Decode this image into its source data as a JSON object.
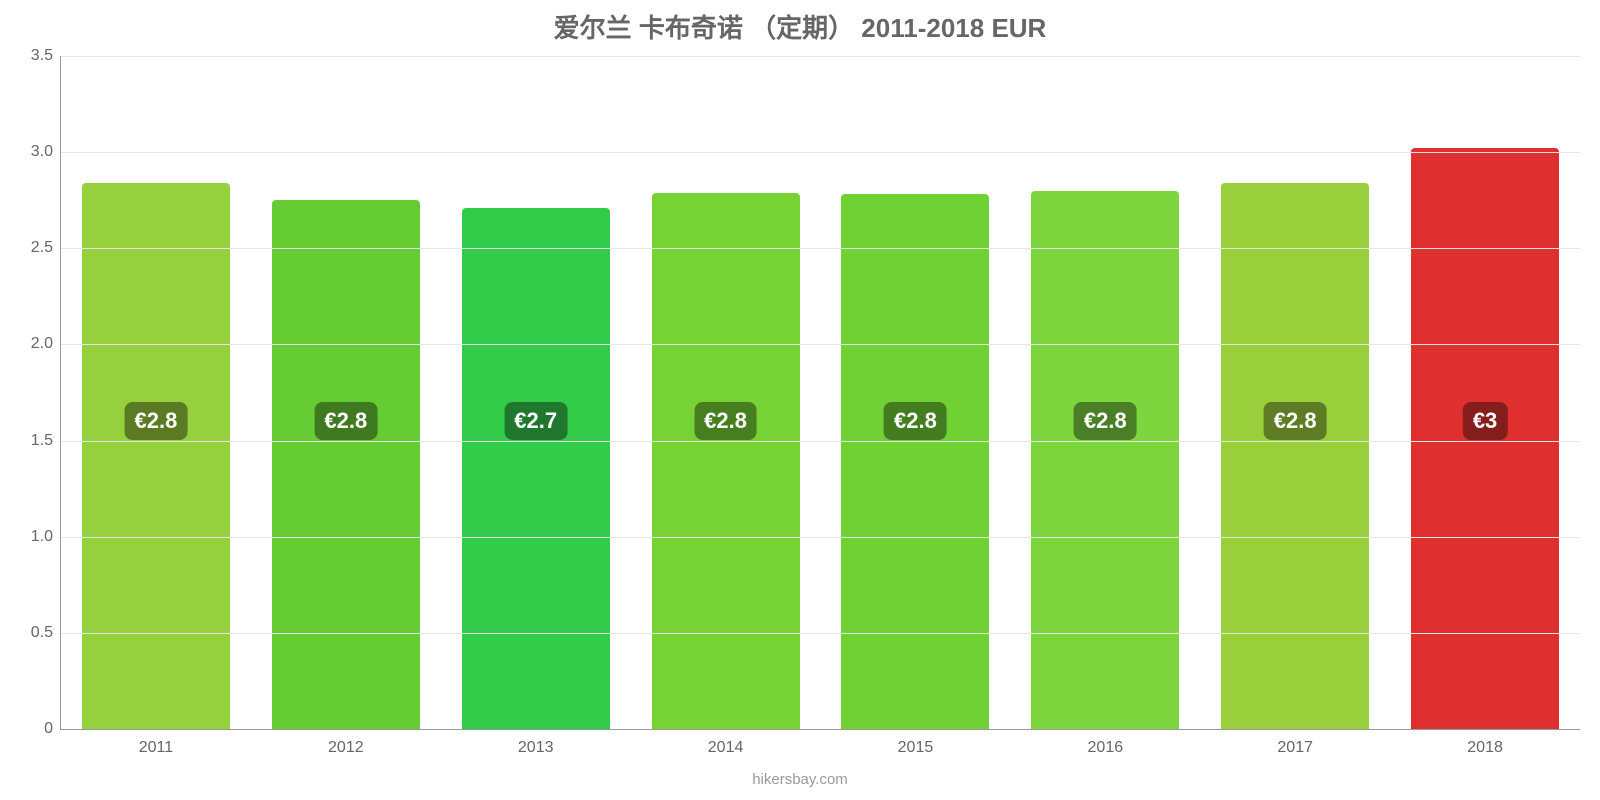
{
  "chart": {
    "type": "bar",
    "title": "爱尔兰 卡布奇诺 （定期） 2011-2018 EUR",
    "title_fontsize": 26,
    "title_color": "#666666",
    "background_color": "#ffffff",
    "axis_color": "#999999",
    "grid_color": "#e6e6e6",
    "tick_label_color": "#666666",
    "tick_label_fontsize": 16,
    "ylim_min": 0,
    "ylim_max": 3.5,
    "yticks": [
      {
        "value": 0,
        "label": "0"
      },
      {
        "value": 0.5,
        "label": "0.5"
      },
      {
        "value": 1.0,
        "label": "1.0"
      },
      {
        "value": 1.5,
        "label": "1.5"
      },
      {
        "value": 2.0,
        "label": "2.0"
      },
      {
        "value": 2.5,
        "label": "2.5"
      },
      {
        "value": 3.0,
        "label": "3.0"
      },
      {
        "value": 3.5,
        "label": "3.5"
      }
    ],
    "bar_width_ratio": 0.78,
    "value_badge_fontsize": 22,
    "value_badge_text_color": "#ffffff",
    "bars": [
      {
        "category": "2011",
        "value": 2.84,
        "value_label": "€2.8",
        "bar_color": "#94d13d",
        "badge_bg": "#5a7a23"
      },
      {
        "category": "2012",
        "value": 2.75,
        "value_label": "€2.8",
        "bar_color": "#66cc33",
        "badge_bg": "#3f7a20"
      },
      {
        "category": "2013",
        "value": 2.71,
        "value_label": "€2.7",
        "bar_color": "#33cc4a",
        "badge_bg": "#20782e"
      },
      {
        "category": "2014",
        "value": 2.79,
        "value_label": "€2.8",
        "bar_color": "#77d333",
        "badge_bg": "#477f20"
      },
      {
        "category": "2015",
        "value": 2.78,
        "value_label": "€2.8",
        "bar_color": "#6fd133",
        "badge_bg": "#437d20"
      },
      {
        "category": "2016",
        "value": 2.8,
        "value_label": "€2.8",
        "bar_color": "#7dd63e",
        "badge_bg": "#4a7f25"
      },
      {
        "category": "2017",
        "value": 2.84,
        "value_label": "€2.8",
        "bar_color": "#9acf3c",
        "badge_bg": "#5e7c24"
      },
      {
        "category": "2018",
        "value": 3.02,
        "value_label": "€3",
        "bar_color": "#e02f2f",
        "badge_bg": "#861d1d"
      }
    ],
    "credit": "hikersbay.com",
    "credit_fontsize": 15,
    "credit_color": "#999999",
    "value_badge_center_value": 1.6
  }
}
